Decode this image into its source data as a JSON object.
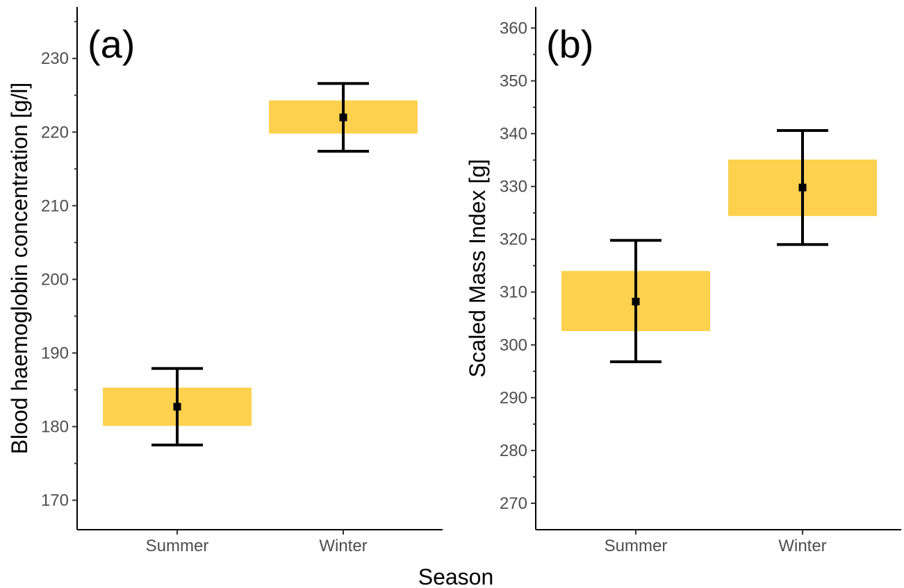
{
  "figure": {
    "xlabel_shared": "Season"
  },
  "colors": {
    "box_fill": "#FDD14E",
    "mean_marker": "#000000",
    "axis": "#000000",
    "tick_text": "#4d4d4d"
  },
  "chart_data": [
    {
      "type": "box",
      "panel_label": "(a)",
      "title": "",
      "xlabel": "Season",
      "ylabel": "Blood haemoglobin concentration [g/l]",
      "ylim": [
        166,
        237
      ],
      "yticks": [
        170,
        180,
        190,
        200,
        210,
        220,
        230
      ],
      "yticks_minor": [
        175,
        185,
        195,
        205,
        215,
        225,
        235
      ],
      "categories": [
        "Summer",
        "Winter"
      ],
      "series": [
        {
          "mean": [
            182.7,
            222.0
          ],
          "box_low": [
            180.1,
            219.8
          ],
          "box_high": [
            185.3,
            224.3
          ],
          "err_low": [
            177.5,
            217.4
          ],
          "err_high": [
            187.9,
            226.6
          ]
        }
      ],
      "grid": false,
      "legend": "none"
    },
    {
      "type": "box",
      "panel_label": "(b)",
      "title": "",
      "xlabel": "Season",
      "ylabel": "Scaled Mass Index [g]",
      "ylim": [
        265,
        364
      ],
      "yticks": [
        270,
        280,
        290,
        300,
        310,
        320,
        330,
        340,
        350,
        360
      ],
      "yticks_minor": [
        275,
        285,
        295,
        305,
        315,
        325,
        335,
        345,
        355
      ],
      "categories": [
        "Summer",
        "Winter"
      ],
      "series": [
        {
          "mean": [
            308.2,
            329.8
          ],
          "box_low": [
            302.6,
            324.4
          ],
          "box_high": [
            314.0,
            335.1
          ],
          "err_low": [
            296.8,
            319.0
          ],
          "err_high": [
            319.8,
            340.6
          ]
        }
      ],
      "grid": false,
      "legend": "none"
    }
  ]
}
